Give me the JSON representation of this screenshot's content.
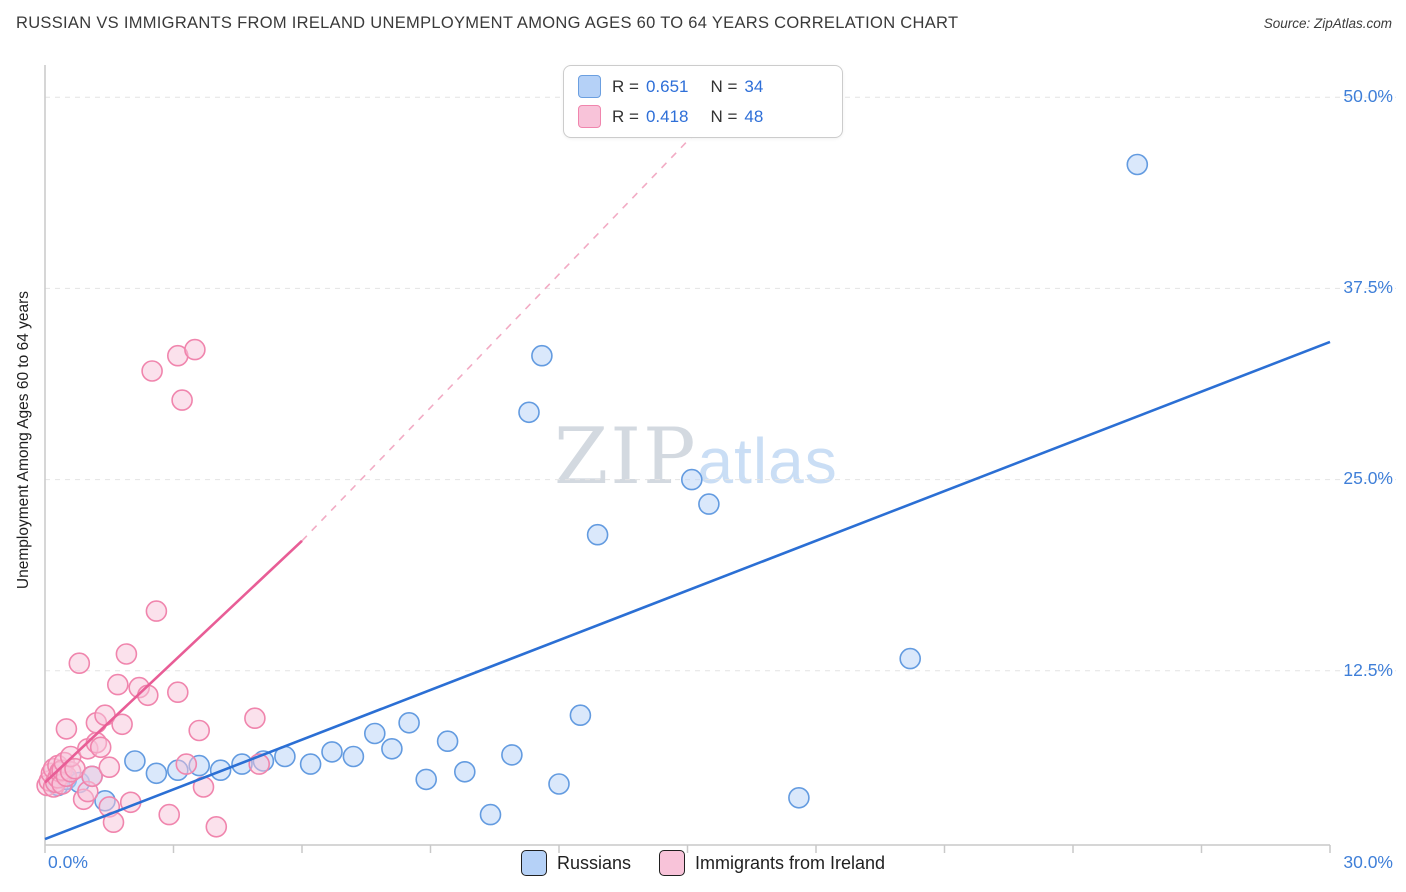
{
  "header": {
    "title": "RUSSIAN VS IMMIGRANTS FROM IRELAND UNEMPLOYMENT AMONG AGES 60 TO 64 YEARS CORRELATION CHART",
    "source": "Source: ZipAtlas.com"
  },
  "legend_box": {
    "series": [
      {
        "r_label": "R =",
        "r": "0.651",
        "n_label": "N =",
        "n": "34"
      },
      {
        "r_label": "R =",
        "r": "0.418",
        "n_label": "N =",
        "n": "48"
      }
    ]
  },
  "axes": {
    "y_label": "Unemployment Among Ages 60 to 64 years",
    "y_ticks": [
      "50.0%",
      "37.5%",
      "25.0%",
      "12.5%"
    ],
    "x_min_label": "0.0%",
    "x_max_label": "30.0%"
  },
  "watermark": {
    "zip": "ZIP",
    "atlas": "atlas"
  },
  "bottom_legend": {
    "items": [
      {
        "label": "Russians",
        "color": "#b5d1f7"
      },
      {
        "label": "Immigrants from Ireland",
        "color": "#f8c3d9"
      }
    ]
  },
  "chart_data": {
    "type": "scatter",
    "title": "RUSSIAN VS IMMIGRANTS FROM IRELAND UNEMPLOYMENT AMONG AGES 60 TO 64 YEARS CORRELATION CHART",
    "xlabel": "",
    "ylabel": "Unemployment Among Ages 60 to 64 years",
    "xlim": [
      0,
      30
    ],
    "ylim": [
      0,
      52
    ],
    "x_tick_labels": [
      "0.0%",
      "30.0%"
    ],
    "y_tick_labels_right": [
      "12.5%",
      "25.0%",
      "37.5%",
      "50.0%"
    ],
    "y_gridlines": [
      12.5,
      25,
      37.5,
      50
    ],
    "grid": "horizontal-dashed",
    "legend_position": "bottom-center",
    "series": [
      {
        "id": "russians",
        "name": "Russians",
        "R": 0.651,
        "N": 34,
        "fill": "#b5d1f7",
        "stroke": "#639be0",
        "points": [
          [
            0.3,
            5.0
          ],
          [
            0.5,
            5.4
          ],
          [
            0.8,
            5.2
          ],
          [
            1.1,
            5.6
          ],
          [
            1.4,
            4.0
          ],
          [
            2.1,
            6.6
          ],
          [
            2.6,
            5.8
          ],
          [
            3.1,
            6.0
          ],
          [
            3.6,
            6.3
          ],
          [
            4.1,
            6.0
          ],
          [
            4.6,
            6.4
          ],
          [
            5.1,
            6.6
          ],
          [
            5.6,
            6.9
          ],
          [
            6.2,
            6.4
          ],
          [
            6.7,
            7.2
          ],
          [
            7.2,
            6.9
          ],
          [
            7.7,
            8.4
          ],
          [
            8.1,
            7.4
          ],
          [
            8.5,
            9.1
          ],
          [
            8.9,
            5.4
          ],
          [
            9.4,
            7.9
          ],
          [
            9.8,
            5.9
          ],
          [
            10.4,
            3.1
          ],
          [
            10.9,
            7.0
          ],
          [
            11.3,
            29.4
          ],
          [
            11.6,
            33.1
          ],
          [
            12.0,
            5.1
          ],
          [
            12.5,
            9.6
          ],
          [
            12.9,
            21.4
          ],
          [
            15.1,
            25.0
          ],
          [
            15.5,
            23.4
          ],
          [
            17.6,
            4.2
          ],
          [
            20.2,
            13.3
          ],
          [
            25.5,
            45.6
          ]
        ]
      },
      {
        "id": "ireland",
        "name": "Immigrants from Ireland",
        "R": 0.418,
        "N": 48,
        "fill": "#f8c3d9",
        "stroke": "#f085ad",
        "points": [
          [
            0.05,
            5.0
          ],
          [
            0.1,
            5.3
          ],
          [
            0.15,
            5.8
          ],
          [
            0.2,
            4.9
          ],
          [
            0.2,
            6.1
          ],
          [
            0.25,
            5.2
          ],
          [
            0.3,
            5.5
          ],
          [
            0.3,
            6.3
          ],
          [
            0.35,
            5.9
          ],
          [
            0.4,
            5.1
          ],
          [
            0.4,
            6.0
          ],
          [
            0.45,
            6.5
          ],
          [
            0.5,
            5.6
          ],
          [
            0.5,
            8.7
          ],
          [
            0.6,
            5.9
          ],
          [
            0.6,
            6.9
          ],
          [
            0.7,
            6.1
          ],
          [
            0.8,
            13.0
          ],
          [
            0.9,
            4.1
          ],
          [
            1.0,
            4.6
          ],
          [
            1.0,
            7.4
          ],
          [
            1.1,
            5.6
          ],
          [
            1.2,
            7.8
          ],
          [
            1.2,
            9.1
          ],
          [
            1.3,
            7.5
          ],
          [
            1.4,
            9.6
          ],
          [
            1.5,
            3.6
          ],
          [
            1.5,
            6.2
          ],
          [
            1.6,
            2.6
          ],
          [
            1.7,
            11.6
          ],
          [
            1.8,
            9.0
          ],
          [
            1.9,
            13.6
          ],
          [
            2.0,
            3.9
          ],
          [
            2.2,
            11.4
          ],
          [
            2.4,
            10.9
          ],
          [
            2.5,
            32.1
          ],
          [
            2.6,
            16.4
          ],
          [
            2.9,
            3.1
          ],
          [
            3.1,
            33.1
          ],
          [
            3.1,
            11.1
          ],
          [
            3.2,
            30.2
          ],
          [
            3.3,
            6.4
          ],
          [
            3.5,
            33.5
          ],
          [
            3.6,
            8.6
          ],
          [
            3.7,
            4.9
          ],
          [
            4.0,
            2.3
          ],
          [
            4.9,
            9.4
          ],
          [
            5.0,
            6.4
          ]
        ]
      }
    ],
    "trend_lines": [
      {
        "id": "russians",
        "color": "#2b6fd4",
        "style": "solid",
        "x0": 0,
        "y0": 1.5,
        "x1": 30,
        "y1": 34.0
      },
      {
        "id": "ireland",
        "color": "#e85d96",
        "style": "solid",
        "x0": 0,
        "y0": 5.2,
        "x1": 6,
        "y1": 21.0
      },
      {
        "id": "ireland-ext",
        "color": "#f2abc4",
        "style": "dashed",
        "x0": 6,
        "y0": 21.0,
        "x1": 16.5,
        "y1": 51.5
      }
    ]
  }
}
